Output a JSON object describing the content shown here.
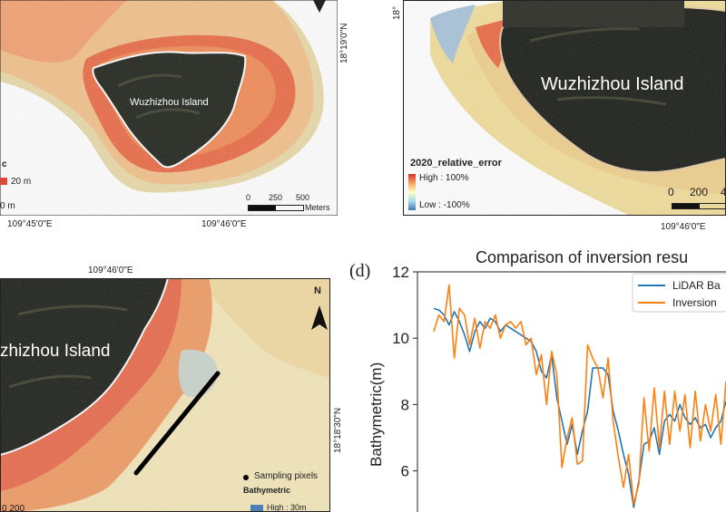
{
  "panel_a": {
    "island_label": "Wuzhizhou Island",
    "lat_label": "18°19'0\"N",
    "lon_labels": [
      "109°45'0\"E",
      "109°46'0\"E"
    ],
    "legend_partial": "c",
    "legend_high": "20 m",
    "legend_low": "0 m",
    "scale_ticks": [
      "0",
      "250",
      "500"
    ],
    "scale_unit": "Meters"
  },
  "panel_b": {
    "island_label": "Wuzhizhou Island",
    "lat_label": "18°",
    "lon_label": "109°46'0\"E",
    "legend_title": "2020_relative_error",
    "legend_high": "High : 100%",
    "legend_low": "Low : -100%",
    "scale_ticks": [
      "0",
      "200",
      "4"
    ]
  },
  "panel_c": {
    "island_label": "zhizhou Island",
    "lon_label": "109°46'0\"E",
    "lat_label": "18°18'30\"N",
    "north_label": "N",
    "legend_sampling": "Sampling pixels",
    "legend_title": "Bathymetric",
    "legend_high": "High : 30m",
    "scale_partial": "0 200"
  },
  "panel_d": {
    "panel_label": "(d)",
    "chart_data": {
      "type": "line",
      "title": "Comparison of inversion resu",
      "ylabel": "Bathymetric(m)",
      "xlabel": "",
      "ylim": [
        4.9,
        12
      ],
      "y_ticks": [
        6,
        8,
        10,
        12
      ],
      "legend_position": "top-right",
      "series": [
        {
          "name": "LiDAR Ba",
          "color": "#1f77b4",
          "values": [
            10.9,
            10.85,
            10.7,
            10.4,
            10.8,
            10.5,
            10.1,
            9.6,
            10.2,
            10.5,
            10.3,
            10.6,
            10.5,
            10.2,
            10.4,
            10.3,
            10.2,
            10.1,
            10.0,
            9.9,
            9.6,
            9.0,
            8.8,
            9.5,
            8.2,
            7.5,
            6.8,
            7.4,
            6.5,
            7.2,
            7.8,
            9.1,
            9.1,
            9.1,
            8.9,
            7.8,
            7.2,
            6.5,
            5.9,
            4.9,
            5.7,
            6.8,
            6.9,
            7.3,
            6.5,
            7.5,
            7.7,
            7.5,
            8.0,
            7.6,
            7.4,
            7.6,
            7.3,
            7.4,
            7.0,
            7.3,
            7.5,
            8.1
          ]
        },
        {
          "name": "Inversion",
          "color": "#ff7f0e",
          "values": [
            10.2,
            10.7,
            10.5,
            11.6,
            9.4,
            10.9,
            10.7,
            9.8,
            10.6,
            9.7,
            10.5,
            10.3,
            10.7,
            10.0,
            10.4,
            10.5,
            10.3,
            10.5,
            9.8,
            10.0,
            8.9,
            9.5,
            8.0,
            9.6,
            8.9,
            6.1,
            7.0,
            7.6,
            6.2,
            6.3,
            9.8,
            9.4,
            9.1,
            8.2,
            9.4,
            7.5,
            6.4,
            5.5,
            6.5,
            5.0,
            5.6,
            8.2,
            6.6,
            8.5,
            6.7,
            8.4,
            6.8,
            8.4,
            7.2,
            8.3,
            6.7,
            8.4,
            6.9,
            8.0,
            7.2,
            8.3,
            6.8,
            8.7
          ]
        }
      ]
    }
  }
}
